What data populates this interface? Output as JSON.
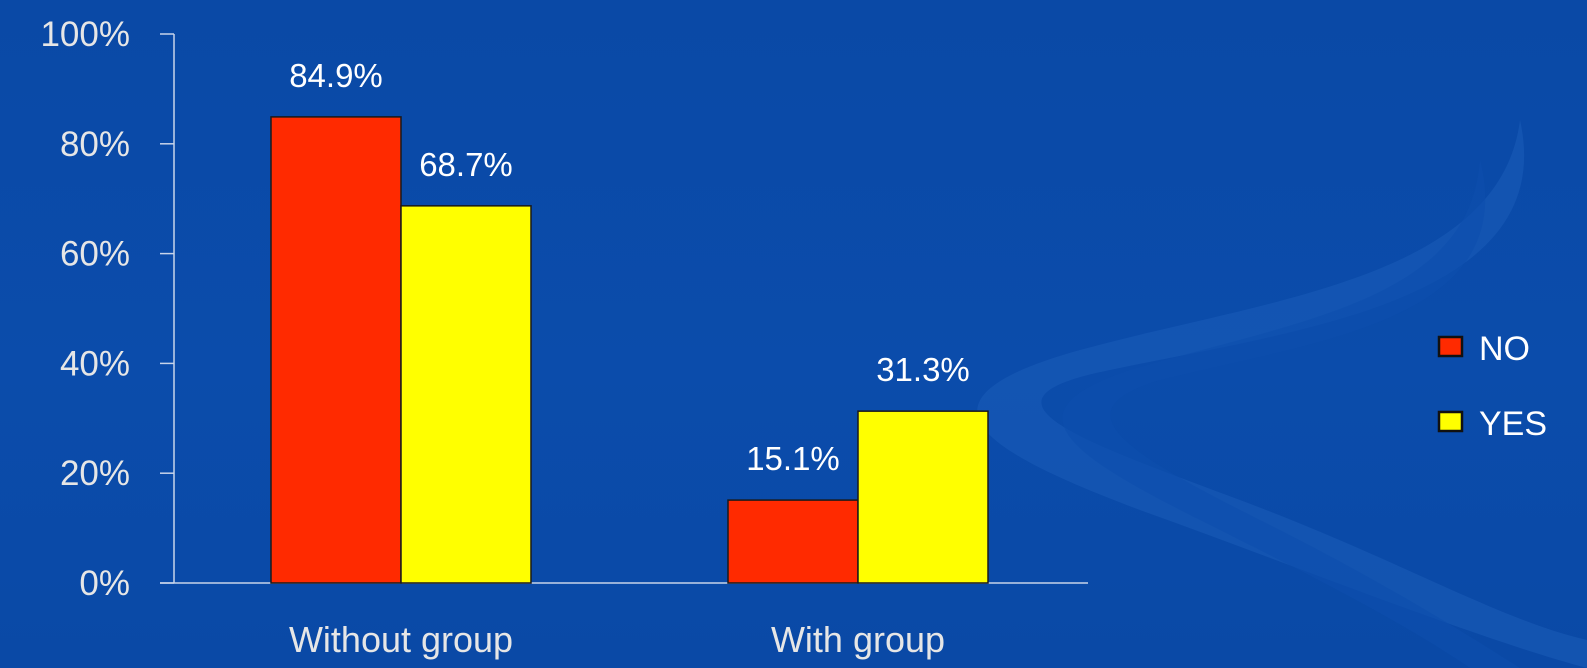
{
  "chart_data": {
    "type": "bar",
    "categories": [
      "Without group",
      "With group"
    ],
    "series": [
      {
        "name": "NO",
        "color": "#ff2a00",
        "values": [
          84.9,
          15.1
        ]
      },
      {
        "name": "YES",
        "color": "#ffff00",
        "values": [
          68.7,
          31.3
        ]
      }
    ],
    "data_labels": [
      [
        "84.9%",
        "15.1%"
      ],
      [
        "68.7%",
        "31.3%"
      ]
    ],
    "ylim": [
      0,
      100
    ],
    "yticks": [
      0,
      20,
      40,
      60,
      80,
      100
    ],
    "ytick_labels": [
      "0%",
      "20%",
      "40%",
      "60%",
      "80%",
      "100%"
    ],
    "legend_position": "right",
    "grid": false,
    "axis_color": "#c8d4ea",
    "background_color": "#0a4aa8"
  }
}
